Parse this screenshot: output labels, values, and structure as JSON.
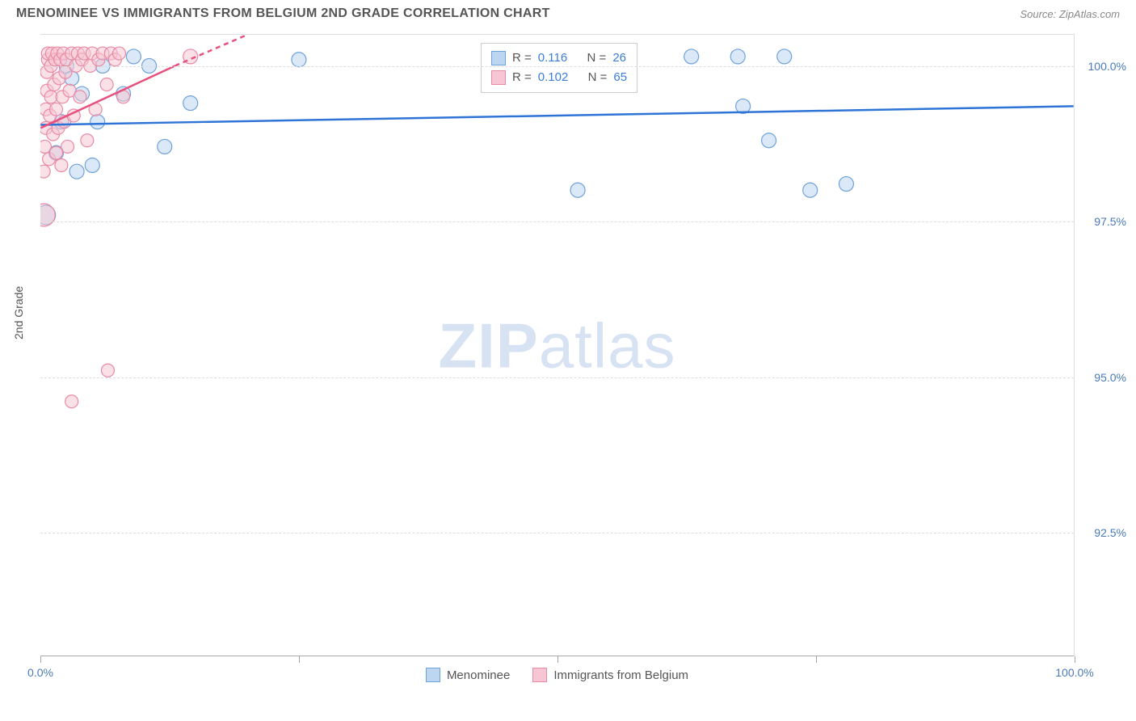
{
  "header": {
    "title": "MENOMINEE VS IMMIGRANTS FROM BELGIUM 2ND GRADE CORRELATION CHART",
    "source": "Source: ZipAtlas.com"
  },
  "y_axis": {
    "label": "2nd Grade"
  },
  "watermark": {
    "zip": "ZIP",
    "atlas": "atlas"
  },
  "chart": {
    "type": "scatter",
    "background_color": "#ffffff",
    "grid_color": "#dddddd",
    "axis_color": "#aaaaaa",
    "xlim": [
      0,
      100
    ],
    "ylim": [
      90.5,
      100.5
    ],
    "x_ticks": [
      0,
      25,
      50,
      75,
      100
    ],
    "x_tick_labels": [
      "0.0%",
      "",
      "",
      "",
      "100.0%"
    ],
    "y_ticks": [
      92.5,
      95.0,
      97.5,
      100.0
    ],
    "y_tick_labels": [
      "92.5%",
      "95.0%",
      "97.5%",
      "100.0%"
    ],
    "tick_label_color": "#4a7ab8",
    "tick_label_fontsize": 14,
    "series": [
      {
        "name": "Menominee",
        "color_fill": "#bcd5f0",
        "color_stroke": "#6fa2d9",
        "line_color": "#2d74d6",
        "line_width": 2.5,
        "marker_radius": 9,
        "fill_opacity": 0.55,
        "R": "0.116",
        "N": "26",
        "trend": {
          "x1": 0,
          "y1": 99.05,
          "x2": 100,
          "y2": 99.35
        },
        "points": [
          {
            "x": 0.5,
            "y": 97.6,
            "r": 12
          },
          {
            "x": 1.5,
            "y": 98.6,
            "r": 9
          },
          {
            "x": 2.0,
            "y": 99.1,
            "r": 9
          },
          {
            "x": 2.5,
            "y": 100.0,
            "r": 9
          },
          {
            "x": 3.0,
            "y": 99.8,
            "r": 9
          },
          {
            "x": 3.5,
            "y": 98.3,
            "r": 9
          },
          {
            "x": 4.0,
            "y": 99.55,
            "r": 9
          },
          {
            "x": 5.0,
            "y": 98.4,
            "r": 9
          },
          {
            "x": 5.5,
            "y": 99.1,
            "r": 9
          },
          {
            "x": 6.0,
            "y": 100.0,
            "r": 9
          },
          {
            "x": 8.0,
            "y": 99.55,
            "r": 9
          },
          {
            "x": 9.0,
            "y": 100.15,
            "r": 9
          },
          {
            "x": 10.5,
            "y": 100.0,
            "r": 9
          },
          {
            "x": 12.0,
            "y": 98.7,
            "r": 9
          },
          {
            "x": 14.5,
            "y": 99.4,
            "r": 9
          },
          {
            "x": 25.0,
            "y": 100.1,
            "r": 9
          },
          {
            "x": 52.0,
            "y": 98.0,
            "r": 9
          },
          {
            "x": 55.0,
            "y": 100.15,
            "r": 9
          },
          {
            "x": 63.0,
            "y": 100.15,
            "r": 9
          },
          {
            "x": 67.5,
            "y": 100.15,
            "r": 9
          },
          {
            "x": 68.0,
            "y": 99.35,
            "r": 9
          },
          {
            "x": 70.5,
            "y": 98.8,
            "r": 9
          },
          {
            "x": 72.0,
            "y": 100.15,
            "r": 9
          },
          {
            "x": 74.5,
            "y": 98.0,
            "r": 9
          },
          {
            "x": 78.0,
            "y": 98.1,
            "r": 9
          }
        ]
      },
      {
        "name": "Immigrants from Belgium",
        "color_fill": "#f6c6d4",
        "color_stroke": "#e98aa5",
        "line_color": "#e8517e",
        "line_width": 2.5,
        "marker_radius": 8,
        "fill_opacity": 0.55,
        "R": "0.102",
        "N": "65",
        "trend_solid": {
          "x1": 0,
          "y1": 99.0,
          "x2": 13,
          "y2": 100.0
        },
        "trend_dashed": {
          "x1": 13,
          "y1": 100.0,
          "x2": 20,
          "y2": 100.5
        },
        "points": [
          {
            "x": 0.3,
            "y": 97.6,
            "r": 14
          },
          {
            "x": 0.3,
            "y": 98.3,
            "r": 8
          },
          {
            "x": 0.4,
            "y": 98.7,
            "r": 8
          },
          {
            "x": 0.5,
            "y": 99.0,
            "r": 8
          },
          {
            "x": 0.5,
            "y": 99.3,
            "r": 8
          },
          {
            "x": 0.6,
            "y": 99.6,
            "r": 8
          },
          {
            "x": 0.6,
            "y": 99.9,
            "r": 8
          },
          {
            "x": 0.7,
            "y": 100.1,
            "r": 8
          },
          {
            "x": 0.7,
            "y": 100.2,
            "r": 8
          },
          {
            "x": 0.8,
            "y": 98.5,
            "r": 8
          },
          {
            "x": 0.9,
            "y": 99.2,
            "r": 8
          },
          {
            "x": 1.0,
            "y": 99.5,
            "r": 8
          },
          {
            "x": 1.0,
            "y": 100.0,
            "r": 8
          },
          {
            "x": 1.1,
            "y": 100.2,
            "r": 8
          },
          {
            "x": 1.2,
            "y": 98.9,
            "r": 8
          },
          {
            "x": 1.3,
            "y": 99.7,
            "r": 8
          },
          {
            "x": 1.4,
            "y": 100.1,
            "r": 8
          },
          {
            "x": 1.5,
            "y": 98.6,
            "r": 8
          },
          {
            "x": 1.5,
            "y": 99.3,
            "r": 8
          },
          {
            "x": 1.6,
            "y": 100.2,
            "r": 8
          },
          {
            "x": 1.7,
            "y": 99.0,
            "r": 8
          },
          {
            "x": 1.8,
            "y": 99.8,
            "r": 8
          },
          {
            "x": 1.9,
            "y": 100.1,
            "r": 8
          },
          {
            "x": 2.0,
            "y": 98.4,
            "r": 8
          },
          {
            "x": 2.1,
            "y": 99.5,
            "r": 8
          },
          {
            "x": 2.2,
            "y": 100.2,
            "r": 8
          },
          {
            "x": 2.3,
            "y": 99.1,
            "r": 8
          },
          {
            "x": 2.4,
            "y": 99.9,
            "r": 8
          },
          {
            "x": 2.5,
            "y": 100.1,
            "r": 8
          },
          {
            "x": 2.6,
            "y": 98.7,
            "r": 8
          },
          {
            "x": 2.8,
            "y": 99.6,
            "r": 8
          },
          {
            "x": 3.0,
            "y": 100.2,
            "r": 8
          },
          {
            "x": 3.2,
            "y": 99.2,
            "r": 8
          },
          {
            "x": 3.4,
            "y": 100.0,
            "r": 8
          },
          {
            "x": 3.6,
            "y": 100.2,
            "r": 8
          },
          {
            "x": 3.8,
            "y": 99.5,
            "r": 8
          },
          {
            "x": 4.0,
            "y": 100.1,
            "r": 8
          },
          {
            "x": 4.2,
            "y": 100.2,
            "r": 8
          },
          {
            "x": 4.5,
            "y": 98.8,
            "r": 8
          },
          {
            "x": 4.8,
            "y": 100.0,
            "r": 8
          },
          {
            "x": 5.0,
            "y": 100.2,
            "r": 8
          },
          {
            "x": 5.3,
            "y": 99.3,
            "r": 8
          },
          {
            "x": 5.6,
            "y": 100.1,
            "r": 8
          },
          {
            "x": 6.0,
            "y": 100.2,
            "r": 8
          },
          {
            "x": 6.4,
            "y": 99.7,
            "r": 8
          },
          {
            "x": 6.8,
            "y": 100.2,
            "r": 8
          },
          {
            "x": 7.2,
            "y": 100.1,
            "r": 8
          },
          {
            "x": 7.6,
            "y": 100.2,
            "r": 8
          },
          {
            "x": 8.0,
            "y": 99.5,
            "r": 8
          },
          {
            "x": 3.0,
            "y": 94.6,
            "r": 8
          },
          {
            "x": 6.5,
            "y": 95.1,
            "r": 8
          },
          {
            "x": 14.5,
            "y": 100.15,
            "r": 9
          }
        ]
      }
    ]
  },
  "legend_stats": {
    "r_label": "R  =",
    "n_label": "N  ="
  },
  "bottom_legend": {
    "items": [
      "Menominee",
      "Immigrants from Belgium"
    ]
  }
}
